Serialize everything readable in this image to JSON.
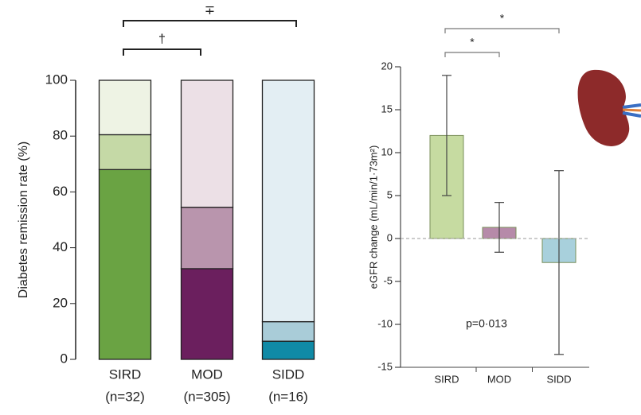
{
  "chart_data": [
    {
      "type": "stacked_bar",
      "y_label": "Diabetes remission rate (%)",
      "categories": [
        "SIRD",
        "MOD",
        "SIDD"
      ],
      "sample_sizes": [
        "(n=32)",
        "(n=305)",
        "(n=16)"
      ],
      "series": [
        {
          "colors": [
            "#6aa343",
            "#6b1f5e",
            "#108aa6"
          ],
          "values": [
            68,
            32.5,
            6.5
          ]
        },
        {
          "colors": [
            "#c5d9a6",
            "#b995ad",
            "#a9ccd8"
          ],
          "values": [
            12.5,
            22,
            7
          ]
        },
        {
          "colors": [
            "#eef3e4",
            "#ece0e6",
            "#e3eef3"
          ],
          "values": [
            19.5,
            45.5,
            86.5
          ]
        }
      ],
      "ylim": [
        0,
        100
      ],
      "yticks": [
        0,
        20,
        40,
        60,
        80,
        100
      ],
      "brackets": [
        {
          "from": 0,
          "to": 2,
          "label": "∓"
        },
        {
          "from": 0,
          "to": 1,
          "label": "†"
        },
        {
          "from": 1,
          "to": 2,
          "label": "*"
        }
      ]
    },
    {
      "type": "error_bar",
      "y_label": "eGFR change (mL/min/1·73m²)",
      "annotation": "p=0·013",
      "categories": [
        "SIRD",
        "MOD",
        "SIDD"
      ],
      "colors": [
        "#c6dba1",
        "#b68aa9",
        "#a8d0dc"
      ],
      "values": [
        12,
        1.3,
        -2.8
      ],
      "errors": [
        7,
        2.9,
        10.7
      ],
      "ylim": [
        -15,
        20
      ],
      "yticks": [
        -15,
        -10,
        -5,
        0,
        5,
        10,
        15,
        20
      ],
      "brackets": [
        {
          "from": 0,
          "to": 2,
          "label": "*"
        },
        {
          "from": 0,
          "to": 1,
          "label": "*"
        }
      ]
    }
  ]
}
